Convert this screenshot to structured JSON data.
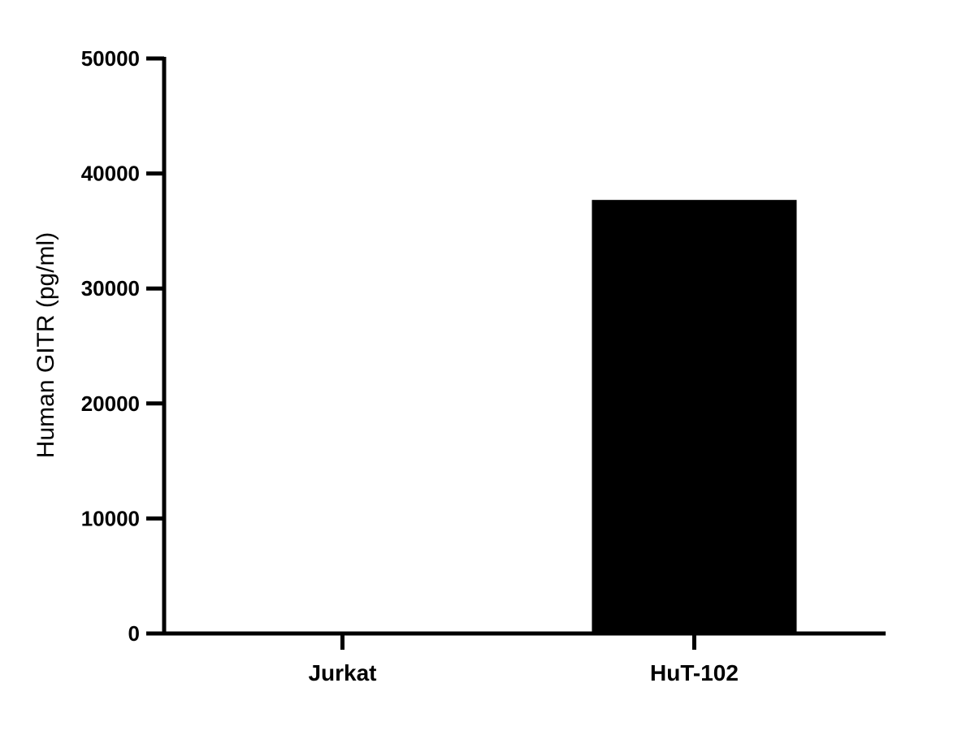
{
  "chart_data": {
    "type": "bar",
    "categories": [
      "Jurkat",
      "HuT-102"
    ],
    "values": [
      0,
      37700
    ],
    "xlabel": "",
    "ylabel": "Human GITR (pg/ml)",
    "ylim": [
      0,
      50000
    ],
    "yticks": [
      "0",
      "10000",
      "20000",
      "30000",
      "40000",
      "50000"
    ],
    "grid": false,
    "bar_color": "#000000"
  }
}
